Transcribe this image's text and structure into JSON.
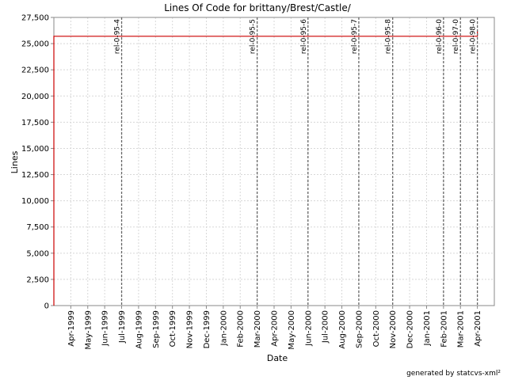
{
  "chart_data": {
    "type": "line",
    "title": "Lines Of Code for brittany/Brest/Castle/",
    "x_label": "Date",
    "y_label": "Lines",
    "footer": "generated by statcvs-xml²",
    "series": [
      {
        "name": "Lines",
        "color": "#cc0000",
        "x": [
          "1999-03",
          "1999-03",
          "2001-04",
          "2001-04"
        ],
        "values": [
          0,
          25700,
          25700,
          26200
        ]
      }
    ],
    "xlim": [
      "1999-03",
      "2001-05"
    ],
    "xticks": [
      {
        "value": "1999-04",
        "label": "Apr-1999"
      },
      {
        "value": "1999-05",
        "label": "May-1999"
      },
      {
        "value": "1999-06",
        "label": "Jun-1999"
      },
      {
        "value": "1999-07",
        "label": "Jul-1999"
      },
      {
        "value": "1999-08",
        "label": "Aug-1999"
      },
      {
        "value": "1999-09",
        "label": "Sep-1999"
      },
      {
        "value": "1999-10",
        "label": "Oct-1999"
      },
      {
        "value": "1999-11",
        "label": "Nov-1999"
      },
      {
        "value": "1999-12",
        "label": "Dec-1999"
      },
      {
        "value": "2000-01",
        "label": "Jan-2000"
      },
      {
        "value": "2000-02",
        "label": "Feb-2000"
      },
      {
        "value": "2000-03",
        "label": "Mar-2000"
      },
      {
        "value": "2000-04",
        "label": "Apr-2000"
      },
      {
        "value": "2000-05",
        "label": "May-2000"
      },
      {
        "value": "2000-06",
        "label": "Jun-2000"
      },
      {
        "value": "2000-07",
        "label": "Jul-2000"
      },
      {
        "value": "2000-08",
        "label": "Aug-2000"
      },
      {
        "value": "2000-09",
        "label": "Sep-2000"
      },
      {
        "value": "2000-10",
        "label": "Oct-2000"
      },
      {
        "value": "2000-11",
        "label": "Nov-2000"
      },
      {
        "value": "2000-12",
        "label": "Dec-2000"
      },
      {
        "value": "2001-01",
        "label": "Jan-2001"
      },
      {
        "value": "2001-02",
        "label": "Feb-2001"
      },
      {
        "value": "2001-03",
        "label": "Mar-2001"
      },
      {
        "value": "2001-04",
        "label": "Apr-2001"
      }
    ],
    "ylim": [
      0,
      27500
    ],
    "yticks": [
      0,
      {
        "value": 2500,
        "label": "2,500"
      },
      {
        "value": 5000,
        "label": "5,000"
      },
      {
        "value": 7500,
        "label": "7,500"
      },
      {
        "value": 10000,
        "label": "10,000"
      },
      {
        "value": 12500,
        "label": "12,500"
      },
      {
        "value": 15000,
        "label": "15,000"
      },
      {
        "value": 17500,
        "label": "17,500"
      },
      {
        "value": 20000,
        "label": "20,000"
      },
      {
        "value": 22500,
        "label": "22,500"
      },
      {
        "value": 25000,
        "label": "25,000"
      },
      {
        "value": 27500,
        "label": "27,500"
      }
    ],
    "grid": true,
    "markers": [
      {
        "label": "rel-0-95-4",
        "x": "1999-07"
      },
      {
        "label": "rel-0-95-5",
        "x": "2000-03"
      },
      {
        "label": "rel-0-95-6",
        "x": "2000-06"
      },
      {
        "label": "rel-0-95-7",
        "x": "2000-09"
      },
      {
        "label": "rel-0-95-8",
        "x": "2000-11"
      },
      {
        "label": "rel-0-96-0",
        "x": "2001-02"
      },
      {
        "label": "rel-0-97-0",
        "x": "2001-03"
      },
      {
        "label": "rel-0-98-0",
        "x": "2001-04"
      }
    ]
  }
}
